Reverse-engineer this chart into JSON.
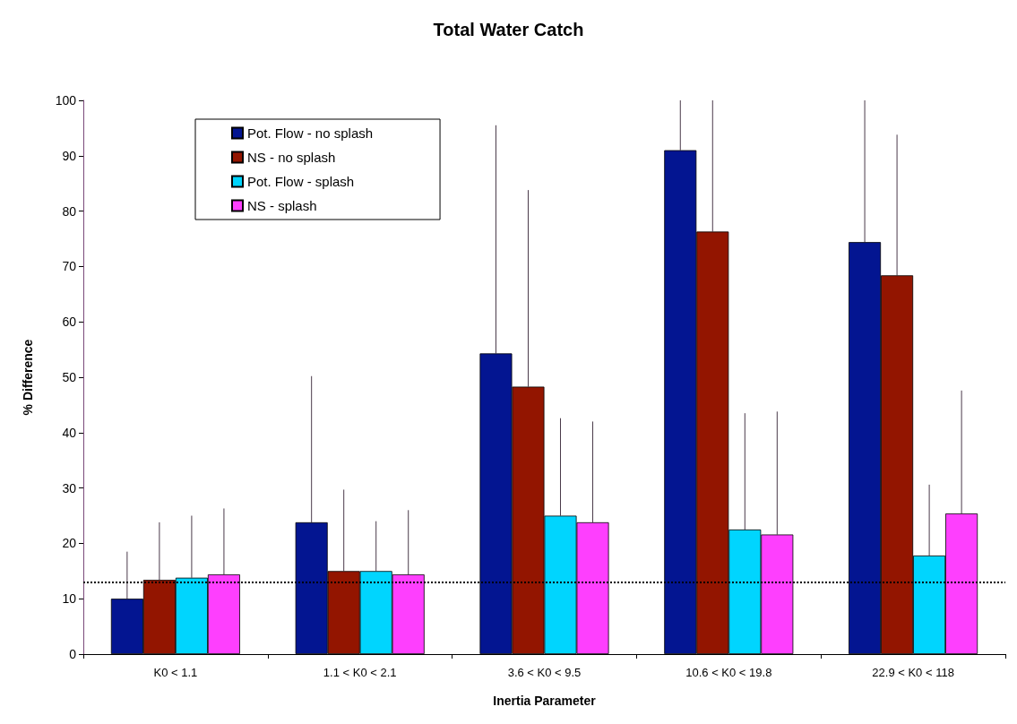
{
  "chart_data": {
    "type": "bar",
    "title": "Total Water Catch",
    "xlabel": "Inertia Parameter",
    "ylabel": "% Difference",
    "categories": [
      "K0 < 1.1",
      "1.1 < K0 < 2.1",
      "3.6 < K0 < 9.5",
      "10.6 < K0 < 19.8",
      "22.9 < K0 < 118"
    ],
    "series": [
      {
        "name": "Pot. Flow - no splash",
        "color": "#031591",
        "values": [
          10,
          23.8,
          54.3,
          91,
          74.4
        ],
        "errors": [
          [
            10,
            18.5
          ],
          [
            23.8,
            50.2
          ],
          [
            54.3,
            95.5
          ],
          [
            91,
            100
          ],
          [
            74.4,
            100
          ]
        ]
      },
      {
        "name": "NS - no splash",
        "color": "#931500",
        "values": [
          13.4,
          15,
          48.3,
          76.3,
          68.4
        ],
        "errors": [
          [
            13.4,
            23.8
          ],
          [
            15,
            29.7
          ],
          [
            48.3,
            83.8
          ],
          [
            76.3,
            100
          ],
          [
            68.4,
            93.8
          ]
        ]
      },
      {
        "name": "Pot. Flow - splash",
        "color": "#00d5fe",
        "values": [
          13.8,
          15,
          25,
          22.5,
          17.8
        ],
        "errors": [
          [
            13.8,
            25
          ],
          [
            15,
            24
          ],
          [
            25,
            42.6
          ],
          [
            22.5,
            43.5
          ],
          [
            17.8,
            30.6
          ]
        ]
      },
      {
        "name": "NS - splash",
        "color": "#fe3ffe",
        "values": [
          14.4,
          14.4,
          23.8,
          21.6,
          25.4
        ],
        "errors": [
          [
            14.4,
            26.3
          ],
          [
            14.4,
            26
          ],
          [
            23.8,
            42
          ],
          [
            21.6,
            43.8
          ],
          [
            25.4,
            47.6
          ]
        ]
      }
    ],
    "ylim": [
      0,
      100
    ],
    "yticks": [
      0,
      10,
      20,
      30,
      40,
      50,
      60,
      70,
      80,
      90,
      100
    ],
    "grid": false,
    "legend": "top left",
    "ref_lines": [
      {
        "axis": "y",
        "value": 13,
        "color": "#000000",
        "line_style": "dotted"
      }
    ]
  }
}
